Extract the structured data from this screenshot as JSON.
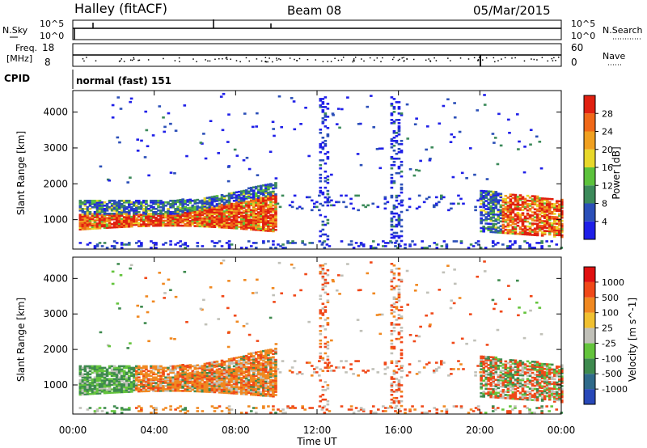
{
  "header": {
    "radar": "Halley (fitACF)",
    "beam": "Beam 08",
    "date": "05/Mar/2015"
  },
  "meta_panels": {
    "nsky_label": "N.Sky",
    "nsearch_label": "N.Search",
    "nsky_ticks": [
      "10^5",
      "10^0"
    ],
    "nsearch_ticks": [
      "10^5",
      "10^0"
    ],
    "freq_label_1": "Freq.",
    "freq_label_2": "[MHz]",
    "freq_ticks": [
      "18",
      "8"
    ],
    "nave_label": "Nave",
    "nave_ticks": [
      "60",
      "0"
    ],
    "cpid_label": "CPID",
    "cpid_value": "normal (fast) 151"
  },
  "chart_data": [
    {
      "type": "heatmap",
      "panel": "power",
      "ylabel": "Slant Range [km]",
      "y_ticks": [
        1000,
        2000,
        3000,
        4000
      ],
      "ylim": [
        180,
        4600
      ],
      "colorbar": {
        "label": "Power [dB]",
        "ticks": [
          "4",
          "8",
          "12",
          "16",
          "20",
          "24",
          "28"
        ],
        "colors": [
          "#1f1fe8",
          "#2b4fb8",
          "#3c8a5a",
          "#5cc23c",
          "#e8d82a",
          "#f0a020",
          "#f06818",
          "#e02010"
        ]
      },
      "bands": [
        {
          "t": [
            0.3,
            9.7
          ],
          "r": [
            700,
            1200
          ],
          "level": "high"
        },
        {
          "t": [
            0.3,
            9.8
          ],
          "r": [
            1200,
            1600
          ],
          "level": "mid"
        },
        {
          "t": [
            12.0,
            12.5
          ],
          "r": [
            300,
            4200
          ],
          "level": "low"
        },
        {
          "t": [
            14.7,
            20.0
          ],
          "r": [
            1300,
            1800
          ],
          "level": "low"
        },
        {
          "t": [
            20.0,
            24.0
          ],
          "r": [
            500,
            1800
          ],
          "level": "high"
        }
      ]
    },
    {
      "type": "heatmap",
      "panel": "velocity",
      "ylabel": "Slant Range [km]",
      "y_ticks": [
        1000,
        2000,
        3000,
        4000
      ],
      "ylim": [
        180,
        4600
      ],
      "colorbar": {
        "label": "Velocity [m s^-1]",
        "ticks": [
          "1000",
          "500",
          "100",
          "25",
          "-25",
          "-100",
          "-500",
          "-1000"
        ],
        "colors": [
          "#2848b8",
          "#2f6a8a",
          "#3e8a4e",
          "#64c43c",
          "#c0c0b8",
          "#f0c030",
          "#f08820",
          "#f04818",
          "#e01010"
        ]
      }
    }
  ],
  "xaxis": {
    "label": "Time UT",
    "ticks": [
      "00:00",
      "04:00",
      "08:00",
      "12:00",
      "16:00",
      "20:00",
      "00:00"
    ]
  }
}
